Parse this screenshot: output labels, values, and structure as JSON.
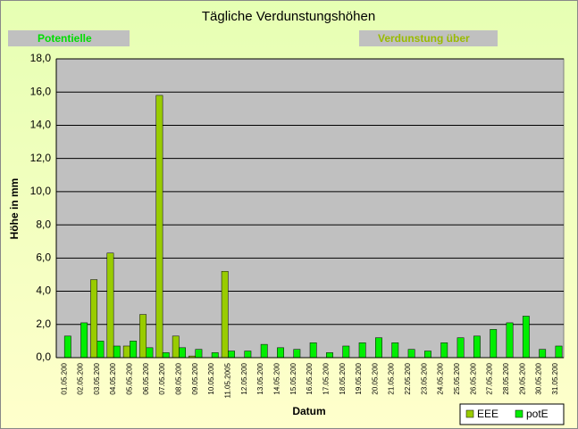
{
  "chart_data": {
    "type": "bar",
    "title": "Tägliche Verdunstungshöhen",
    "annotations": [
      "Potentielle",
      "Verdunstung über"
    ],
    "ylabel": "Höhe in mm",
    "xlabel": "Datum",
    "categories": [
      "01.05.200",
      "02.05.200",
      "03.05.200",
      "04.05.200",
      "05.05.200",
      "06.05.200",
      "07.05.200",
      "08.05.200",
      "09.05.200",
      "10.05.200",
      "11.05.2005",
      "12.05.200",
      "13.05.200",
      "14.05.200",
      "15.05.200",
      "16.05.200",
      "17.05.200",
      "18.05.200",
      "19.05.200",
      "20.05.200",
      "21.05.200",
      "22.05.200",
      "23.05.200",
      "24.05.200",
      "25.05.200",
      "26.05.200",
      "27.05.200",
      "28.05.200",
      "29.05.200",
      "30.05.200",
      "31.05.200"
    ],
    "series": [
      {
        "name": "EEE",
        "color": "#99cc00",
        "values": [
          0,
          0,
          4.7,
          6.3,
          0.7,
          2.6,
          15.8,
          1.3,
          0.1,
          0,
          5.2,
          0,
          0,
          0,
          0,
          0,
          0,
          0,
          0,
          0,
          0,
          0,
          0,
          0,
          0,
          0,
          0,
          0,
          0,
          0,
          0
        ]
      },
      {
        "name": "potE",
        "color": "#00ee00",
        "values": [
          1.3,
          2.1,
          1.0,
          0.7,
          1.0,
          0.6,
          0.3,
          0.6,
          0.5,
          0.3,
          0.4,
          0.4,
          0.8,
          0.6,
          0.5,
          0.9,
          0.3,
          0.7,
          0.9,
          1.2,
          0.9,
          0.5,
          0.4,
          0.9,
          1.2,
          1.3,
          1.7,
          2.1,
          2.5,
          0.5,
          0.7
        ]
      }
    ],
    "ylim": [
      0,
      18
    ],
    "yticks": [
      {
        "value": 0,
        "label": "0,0"
      },
      {
        "value": 2,
        "label": "2,0"
      },
      {
        "value": 4,
        "label": "4,0"
      },
      {
        "value": 6,
        "label": "6,0"
      },
      {
        "value": 8,
        "label": "8,0"
      },
      {
        "value": 10,
        "label": "10,0"
      },
      {
        "value": 12,
        "label": "12,0"
      },
      {
        "value": 14,
        "label": "14,0"
      },
      {
        "value": 16,
        "label": "16,0"
      },
      {
        "value": 18,
        "label": "18,0"
      }
    ],
    "grid": true,
    "legend": "bottom-right"
  }
}
